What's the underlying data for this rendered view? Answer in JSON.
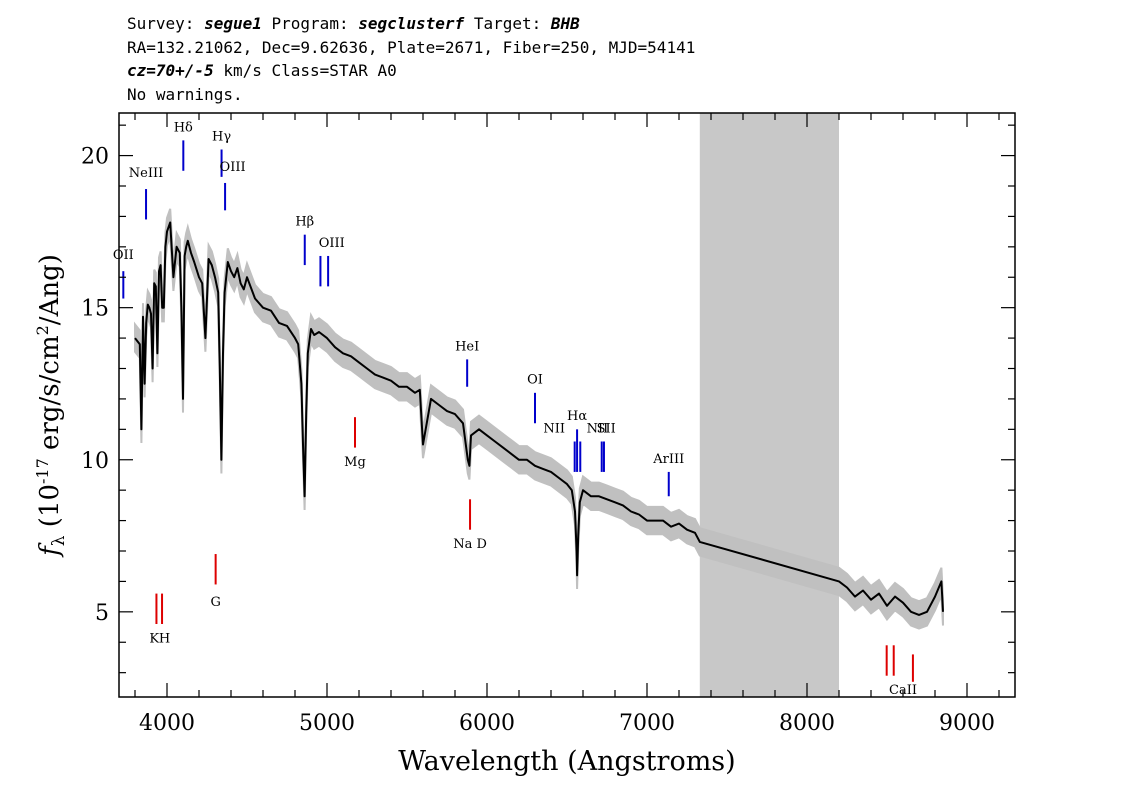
{
  "header": {
    "survey_label": "Survey:",
    "survey": "segue1",
    "program_label": "Program:",
    "program": "segclusterf",
    "target_label": "Target:",
    "target": "BHB",
    "coords": "RA=132.21062, Dec=9.62636, Plate=2671, Fiber=250, MJD=54141",
    "cz": "cz=70+/-5",
    "cz_rest": "km/s Class=STAR A0",
    "warnings": "No warnings."
  },
  "colors": {
    "flux": "#000000",
    "error": "#c0c0c0",
    "gap": "#c8c8c8",
    "emission": "#0000cc",
    "absorption": "#dd0000"
  },
  "chart_data": {
    "type": "line",
    "xlabel": "Wavelength (Angstroms)",
    "ylabel_parts": {
      "f": "f",
      "sub": "λ",
      "pre": " (10",
      "exp1": "-17",
      "mid": " erg/s/cm",
      "exp2": "2",
      "post": "/Ang)"
    },
    "xlim": [
      3700,
      9300
    ],
    "ylim": [
      2.2,
      21.4
    ],
    "xticks": [
      4000,
      5000,
      6000,
      7000,
      8000,
      9000
    ],
    "yticks": [
      5,
      10,
      15,
      20
    ],
    "masked_region": [
      7330,
      8200
    ],
    "series": [
      {
        "role": "flux",
        "x": [
          3800,
          3830,
          3840,
          3850,
          3860,
          3870,
          3880,
          3890,
          3900,
          3910,
          3920,
          3930,
          3940,
          3950,
          3960,
          3970,
          3980,
          3990,
          4000,
          4020,
          4040,
          4060,
          4080,
          4090,
          4100,
          4110,
          4120,
          4130,
          4150,
          4170,
          4200,
          4220,
          4240,
          4260,
          4280,
          4300,
          4320,
          4330,
          4340,
          4350,
          4360,
          4380,
          4400,
          4420,
          4440,
          4460,
          4480,
          4500,
          4550,
          4600,
          4650,
          4700,
          4750,
          4800,
          4820,
          4840,
          4850,
          4860,
          4870,
          4880,
          4900,
          4920,
          4950,
          5000,
          5050,
          5100,
          5150,
          5200,
          5250,
          5300,
          5350,
          5400,
          5450,
          5500,
          5550,
          5580,
          5600,
          5650,
          5700,
          5750,
          5800,
          5850,
          5880,
          5890,
          5900,
          5950,
          6000,
          6050,
          6100,
          6150,
          6200,
          6250,
          6300,
          6350,
          6400,
          6450,
          6500,
          6530,
          6550,
          6560,
          6563,
          6570,
          6580,
          6600,
          6650,
          6700,
          6750,
          6800,
          6850,
          6900,
          6950,
          7000,
          7050,
          7100,
          7150,
          7200,
          7250,
          7300,
          7330,
          8200,
          8250,
          8300,
          8350,
          8400,
          8450,
          8500,
          8550,
          8600,
          8650,
          8700,
          8750,
          8800,
          8840,
          8850
        ],
        "y": [
          14.0,
          13.8,
          11.0,
          14.7,
          12.5,
          14.5,
          15.1,
          15.0,
          14.8,
          13.0,
          15.8,
          15.7,
          13.5,
          16.2,
          16.4,
          15.0,
          15.0,
          17.0,
          17.5,
          17.8,
          16.0,
          17.0,
          16.8,
          15.0,
          12.0,
          16.7,
          17.0,
          17.2,
          16.8,
          16.5,
          16.0,
          15.8,
          14.0,
          16.6,
          16.4,
          16.0,
          15.5,
          13.0,
          10.0,
          13.5,
          15.5,
          16.5,
          16.2,
          16.0,
          16.3,
          15.8,
          15.6,
          16.0,
          15.3,
          15.0,
          14.9,
          14.5,
          14.4,
          14.0,
          13.8,
          12.5,
          10.5,
          8.8,
          11.5,
          13.5,
          14.3,
          14.1,
          14.2,
          14.0,
          13.7,
          13.5,
          13.4,
          13.2,
          13.0,
          12.8,
          12.7,
          12.6,
          12.4,
          12.4,
          12.2,
          12.3,
          10.5,
          12.0,
          11.8,
          11.6,
          11.5,
          11.2,
          10.0,
          9.8,
          10.8,
          11.0,
          10.8,
          10.6,
          10.4,
          10.2,
          10.0,
          10.0,
          9.8,
          9.7,
          9.6,
          9.4,
          9.2,
          9.0,
          8.3,
          7.0,
          6.2,
          7.5,
          8.6,
          9.0,
          8.8,
          8.8,
          8.7,
          8.6,
          8.5,
          8.3,
          8.2,
          8.0,
          8.0,
          8.0,
          7.8,
          7.9,
          7.7,
          7.6,
          7.3,
          6.0,
          5.8,
          5.5,
          5.7,
          5.4,
          5.6,
          5.2,
          5.5,
          5.3,
          5.0,
          4.9,
          5.0,
          5.5,
          6.0,
          5.0
        ]
      }
    ],
    "lines": [
      {
        "label": "OII",
        "x": 3727,
        "kind": "emission",
        "y1": 15.3,
        "y2": 16.2,
        "ly": 16.6,
        "lx": 3727
      },
      {
        "label": "NeIII",
        "x": 3869,
        "kind": "emission",
        "y1": 17.9,
        "y2": 18.9,
        "ly": 19.3,
        "lx": 3869
      },
      {
        "label": "Hδ",
        "x": 4102,
        "kind": "emission",
        "y1": 19.5,
        "y2": 20.5,
        "ly": 20.8,
        "lx": 4102
      },
      {
        "label": "Hγ",
        "x": 4341,
        "kind": "emission",
        "y1": 19.3,
        "y2": 20.2,
        "ly": 20.5,
        "lx": 4341
      },
      {
        "label": "OIII",
        "x": 4363,
        "kind": "emission",
        "y1": 18.2,
        "y2": 19.1,
        "ly": 19.5,
        "lx": 4410
      },
      {
        "label": "Hβ",
        "x": 4861,
        "kind": "emission",
        "y1": 16.4,
        "y2": 17.4,
        "ly": 17.7,
        "lx": 4861
      },
      {
        "label": "OIII",
        "x": 4959,
        "kind": "emission",
        "y1": 15.7,
        "y2": 16.7,
        "ly": 17.0,
        "lx": 5030
      },
      {
        "label": "OIII",
        "x": 5007,
        "kind": "emission",
        "y1": 15.7,
        "y2": 16.7,
        "ly": 17.0,
        "lx": 5030,
        "hide_label": true
      },
      {
        "label": "HeI",
        "x": 5876,
        "kind": "emission",
        "y1": 12.4,
        "y2": 13.3,
        "ly": 13.6,
        "lx": 5876
      },
      {
        "label": "OI",
        "x": 6300,
        "kind": "emission",
        "y1": 11.2,
        "y2": 12.2,
        "ly": 12.5,
        "lx": 6300
      },
      {
        "label": "NII",
        "x": 6548,
        "kind": "emission",
        "y1": 9.6,
        "y2": 10.6,
        "ly": 10.9,
        "lx": 6420
      },
      {
        "label": "Hα",
        "x": 6563,
        "kind": "emission",
        "y1": 9.6,
        "y2": 11.0,
        "ly": 11.3,
        "lx": 6563
      },
      {
        "label": "NII",
        "x": 6583,
        "kind": "emission",
        "y1": 9.6,
        "y2": 10.6,
        "ly": 10.9,
        "lx": 6583,
        "hide_label": true
      },
      {
        "label": "NII",
        "x": 6717,
        "kind": "emission",
        "y1": 9.6,
        "y2": 10.6,
        "ly": 10.9,
        "lx": 6690
      },
      {
        "label": "SII",
        "x": 6731,
        "kind": "emission",
        "y1": 9.6,
        "y2": 10.6,
        "ly": 10.9,
        "lx": 6745
      },
      {
        "label": "ArIII",
        "x": 7136,
        "kind": "emission",
        "y1": 8.8,
        "y2": 9.6,
        "ly": 9.9,
        "lx": 7136
      },
      {
        "label": "K",
        "x": 3934,
        "kind": "absorption",
        "y1": 4.6,
        "y2": 5.6,
        "ly": 4.0,
        "lx": 3920
      },
      {
        "label": "H",
        "x": 3969,
        "kind": "absorption",
        "y1": 4.6,
        "y2": 5.6,
        "ly": 4.0,
        "lx": 3985
      },
      {
        "label": "G",
        "x": 4304,
        "kind": "absorption",
        "y1": 5.9,
        "y2": 6.9,
        "ly": 5.2,
        "lx": 4304
      },
      {
        "label": "Mg",
        "x": 5175,
        "kind": "absorption",
        "y1": 10.4,
        "y2": 11.4,
        "ly": 9.8,
        "lx": 5175
      },
      {
        "label": "Na D",
        "x": 5894,
        "kind": "absorption",
        "y1": 7.7,
        "y2": 8.7,
        "ly": 7.1,
        "lx": 5894
      },
      {
        "label": "CaII",
        "x": 8498,
        "kind": "absorption",
        "y1": 2.9,
        "y2": 3.9,
        "ly": 2.3,
        "lx": 8600
      },
      {
        "label": "CaII",
        "x": 8542,
        "kind": "absorption",
        "y1": 2.9,
        "y2": 3.9,
        "ly": 2.3,
        "lx": 8600,
        "hide_label": true
      },
      {
        "label": "CaII",
        "x": 8662,
        "kind": "absorption",
        "y1": 2.7,
        "y2": 3.6,
        "ly": 2.3,
        "lx": 8600,
        "hide_label": true
      }
    ]
  }
}
